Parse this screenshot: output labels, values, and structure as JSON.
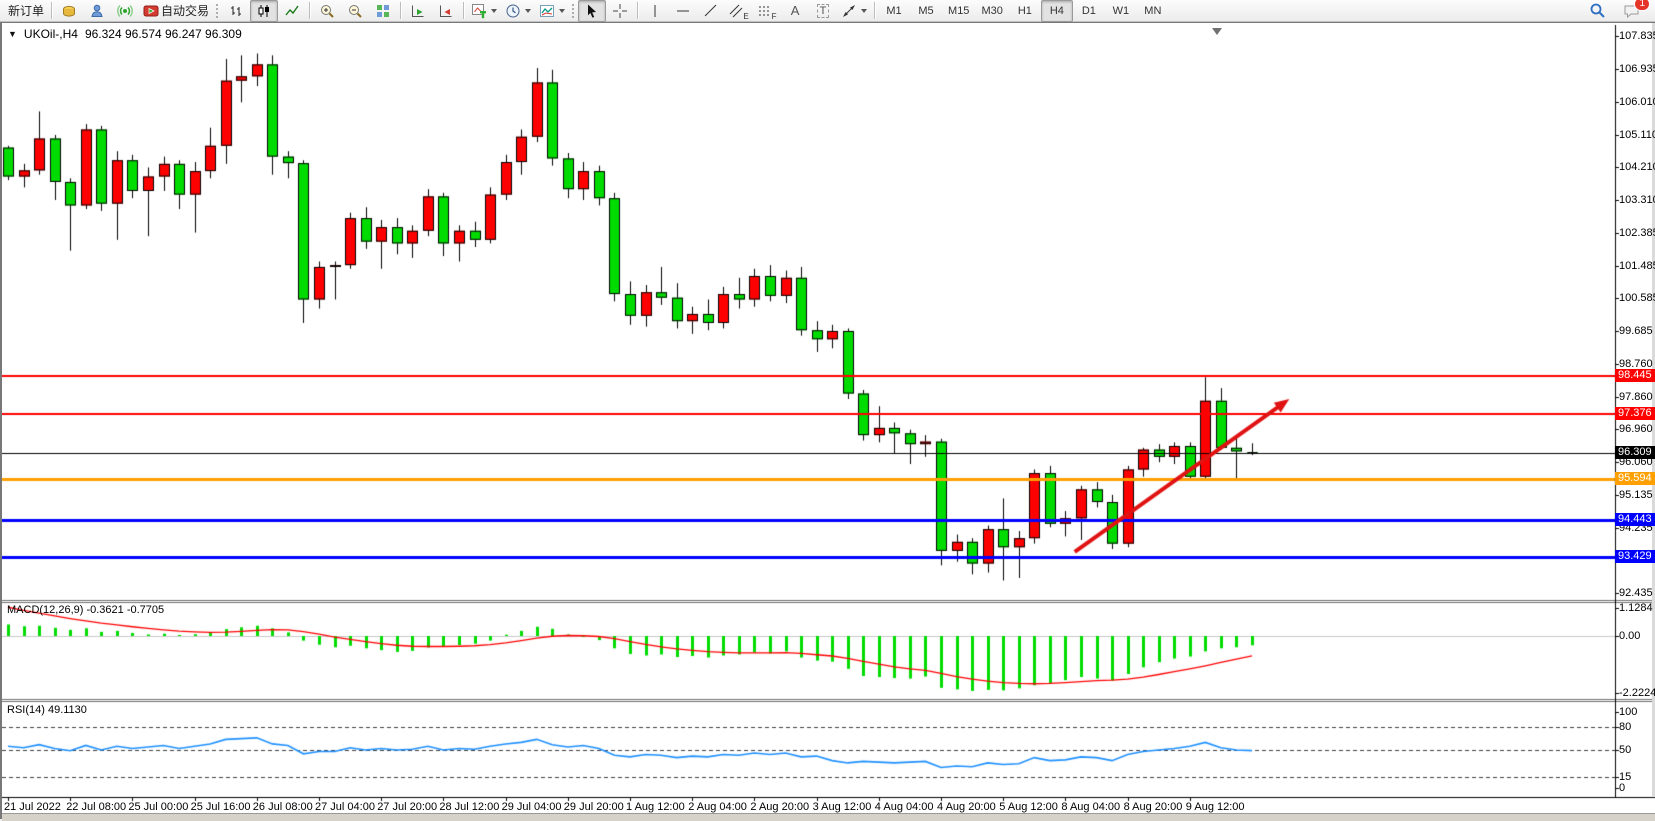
{
  "toolbar": {
    "new_order": "新订单",
    "auto_trading": "自动交易",
    "tool_letters": {
      "channel": "E",
      "fibonacci": "F",
      "text": "A",
      "label": "T"
    },
    "timeframes": [
      "M1",
      "M5",
      "M15",
      "M30",
      "H1",
      "H4",
      "D1",
      "W1",
      "MN"
    ],
    "active_timeframe": "H4",
    "notification_badge": "1",
    "icon_names": [
      "coins-icon",
      "contacts-icon",
      "signal-icon",
      "autotrade-icon",
      "bar-chart-icon",
      "candle-chart-icon",
      "line-chart-icon",
      "zoom-in-icon",
      "zoom-out-icon",
      "tile-windows-icon",
      "profile-next-icon",
      "profile-prev-icon",
      "new-chart-icon",
      "periods-clock-icon",
      "indicators-icon",
      "cursor-icon",
      "crosshair-icon",
      "vline-icon",
      "hline-icon",
      "trendline-icon",
      "channel-icon",
      "fibonacci-icon",
      "text-icon",
      "label-icon",
      "arrows-icon",
      "search-icon",
      "chat-icon"
    ]
  },
  "chart_window": {
    "caption_symbol": "UKOil-,H4",
    "caption_ohlc": "96.324 96.574 96.247 96.309",
    "macd_label": "MACD(12,26,9) -0.3621 -0.7705",
    "rsi_label": "RSI(14) 49.1130"
  },
  "chart_data": {
    "type": "candlestick",
    "symbol": "UKOil-",
    "period": "H4",
    "grid": false,
    "up_color": "#ff0000",
    "down_color": "#00dc00",
    "candle_border": "#000000",
    "price_axis_ticks": [
      "107.835",
      "106.935",
      "106.010",
      "105.110",
      "104.210",
      "103.310",
      "102.385",
      "101.485",
      "100.585",
      "99.685",
      "98.760",
      "97.860",
      "96.960",
      "96.060",
      "95.135",
      "94.235",
      "93.335",
      "92.435"
    ],
    "last_price": "96.309",
    "time_axis_labels": [
      "21 Jul 2022",
      "22 Jul 08:00",
      "25 Jul 00:00",
      "25 Jul 16:00",
      "26 Jul 08:00",
      "27 Jul 04:00",
      "27 Jul 20:00",
      "28 Jul 12:00",
      "29 Jul 04:00",
      "29 Jul 20:00",
      "1 Aug 12:00",
      "2 Aug 04:00",
      "2 Aug 20:00",
      "3 Aug 12:00",
      "4 Aug 04:00",
      "4 Aug 20:00",
      "5 Aug 12:00",
      "8 Aug 04:00",
      "8 Aug 20:00",
      "9 Aug 12:00"
    ],
    "bars_per_label": 4,
    "candles_ohlc": [
      [
        104.75,
        104.8,
        103.85,
        103.95
      ],
      [
        103.95,
        104.3,
        103.65,
        104.12
      ],
      [
        104.12,
        105.75,
        104.0,
        105.0
      ],
      [
        105.0,
        105.1,
        103.3,
        103.8
      ],
      [
        103.8,
        103.9,
        101.9,
        103.15
      ],
      [
        103.15,
        105.4,
        103.05,
        105.25
      ],
      [
        105.25,
        105.35,
        103.0,
        103.2
      ],
      [
        103.2,
        104.65,
        102.2,
        104.4
      ],
      [
        104.4,
        104.55,
        103.35,
        103.55
      ],
      [
        103.55,
        104.2,
        102.3,
        103.95
      ],
      [
        103.95,
        104.5,
        103.55,
        104.3
      ],
      [
        104.3,
        104.4,
        103.05,
        103.45
      ],
      [
        103.45,
        104.35,
        102.4,
        104.1
      ],
      [
        104.1,
        105.3,
        103.9,
        104.8
      ],
      [
        104.8,
        107.2,
        104.3,
        106.6
      ],
      [
        106.6,
        107.3,
        106.0,
        106.72
      ],
      [
        106.72,
        107.35,
        106.45,
        107.05
      ],
      [
        107.05,
        107.3,
        104.0,
        104.5
      ],
      [
        104.5,
        104.65,
        103.9,
        104.32
      ],
      [
        104.32,
        104.4,
        99.9,
        100.55
      ],
      [
        100.55,
        101.6,
        100.3,
        101.45
      ],
      [
        101.45,
        101.6,
        100.55,
        101.5
      ],
      [
        101.5,
        102.95,
        101.4,
        102.8
      ],
      [
        102.8,
        103.1,
        101.95,
        102.15
      ],
      [
        102.15,
        102.75,
        101.4,
        102.55
      ],
      [
        102.55,
        102.8,
        101.8,
        102.1
      ],
      [
        102.1,
        102.6,
        101.7,
        102.45
      ],
      [
        102.45,
        103.6,
        102.3,
        103.4
      ],
      [
        103.4,
        103.5,
        101.75,
        102.1
      ],
      [
        102.1,
        102.6,
        101.6,
        102.45
      ],
      [
        102.45,
        102.7,
        102.0,
        102.2
      ],
      [
        102.2,
        103.65,
        102.1,
        103.45
      ],
      [
        103.45,
        104.55,
        103.3,
        104.35
      ],
      [
        104.35,
        105.25,
        104.0,
        105.05
      ],
      [
        105.05,
        106.95,
        104.9,
        106.55
      ],
      [
        106.55,
        106.9,
        104.25,
        104.45
      ],
      [
        104.45,
        104.6,
        103.35,
        103.6
      ],
      [
        103.6,
        104.35,
        103.3,
        104.1
      ],
      [
        104.1,
        104.25,
        103.15,
        103.35
      ],
      [
        103.35,
        103.5,
        100.5,
        100.7
      ],
      [
        100.7,
        101.05,
        99.85,
        100.1
      ],
      [
        100.1,
        100.95,
        99.8,
        100.75
      ],
      [
        100.75,
        101.45,
        100.4,
        100.6
      ],
      [
        100.6,
        101.0,
        99.75,
        99.95
      ],
      [
        99.95,
        100.35,
        99.6,
        100.15
      ],
      [
        100.15,
        100.55,
        99.7,
        99.9
      ],
      [
        99.9,
        100.9,
        99.75,
        100.7
      ],
      [
        100.7,
        101.15,
        100.3,
        100.55
      ],
      [
        100.55,
        101.4,
        100.35,
        101.2
      ],
      [
        101.2,
        101.5,
        100.5,
        100.65
      ],
      [
        100.65,
        101.35,
        100.45,
        101.15
      ],
      [
        101.15,
        101.45,
        99.55,
        99.7
      ],
      [
        99.7,
        99.95,
        99.1,
        99.45
      ],
      [
        99.45,
        99.85,
        99.2,
        99.68
      ],
      [
        99.68,
        99.75,
        97.8,
        97.95
      ],
      [
        97.95,
        98.05,
        96.65,
        96.8
      ],
      [
        96.8,
        97.6,
        96.6,
        97.0
      ],
      [
        97.0,
        97.15,
        96.3,
        96.85
      ],
      [
        96.85,
        96.95,
        96.0,
        96.55
      ],
      [
        96.55,
        96.8,
        96.2,
        96.62
      ],
      [
        96.62,
        96.7,
        93.2,
        93.6
      ],
      [
        93.6,
        94.05,
        93.3,
        93.85
      ],
      [
        93.85,
        93.95,
        92.95,
        93.25
      ],
      [
        93.25,
        94.3,
        93.0,
        94.2
      ],
      [
        94.2,
        95.05,
        92.78,
        93.7
      ],
      [
        93.7,
        94.15,
        92.85,
        93.95
      ],
      [
        93.95,
        95.85,
        93.8,
        95.75
      ],
      [
        95.75,
        95.95,
        94.25,
        94.35
      ],
      [
        94.35,
        94.7,
        94.0,
        94.5
      ],
      [
        94.5,
        95.4,
        93.9,
        95.3
      ],
      [
        95.3,
        95.5,
        94.8,
        94.95
      ],
      [
        94.95,
        95.15,
        93.65,
        93.8
      ],
      [
        93.8,
        95.95,
        93.7,
        95.85
      ],
      [
        95.85,
        96.45,
        95.65,
        96.4
      ],
      [
        96.4,
        96.55,
        96.05,
        96.2
      ],
      [
        96.2,
        96.6,
        96.0,
        96.5
      ],
      [
        96.5,
        96.6,
        95.55,
        95.65
      ],
      [
        95.65,
        98.4,
        95.6,
        97.75
      ],
      [
        97.75,
        98.1,
        96.4,
        96.45
      ],
      [
        96.45,
        96.75,
        95.55,
        96.35
      ],
      [
        96.324,
        96.574,
        96.247,
        96.309
      ]
    ],
    "levels": [
      {
        "label": "98.445",
        "price": 98.445,
        "color": "#ff0000",
        "width": 2
      },
      {
        "label": "97.376",
        "price": 97.376,
        "color": "#ff0000",
        "width": 2
      },
      {
        "label": "96.309",
        "price": 96.309,
        "color": "#000000",
        "width": 1
      },
      {
        "label": "95.594",
        "price": 95.594,
        "color": "#ff9f00",
        "width": 3
      },
      {
        "label": "94.443",
        "price": 94.443,
        "color": "#0000ff",
        "width": 3
      },
      {
        "label": "93.429",
        "price": 93.429,
        "color": "#0000ff",
        "width": 3
      }
    ],
    "macd": {
      "params": "12,26,9",
      "value": -0.3621,
      "signal_value": -0.7705,
      "axis_ticks": [
        "1.1284",
        "0.00",
        "-2.2224"
      ],
      "hist_color": "#00dc00",
      "signal_color": "#ff0000",
      "histogram": [
        0.45,
        0.38,
        0.4,
        0.32,
        0.24,
        0.3,
        0.16,
        0.2,
        0.12,
        0.06,
        0.09,
        0.04,
        0.07,
        0.13,
        0.27,
        0.34,
        0.4,
        0.3,
        0.14,
        -0.18,
        -0.34,
        -0.44,
        -0.38,
        -0.48,
        -0.55,
        -0.62,
        -0.58,
        -0.45,
        -0.42,
        -0.35,
        -0.3,
        -0.18,
        0.05,
        0.2,
        0.36,
        0.28,
        0.06,
        -0.04,
        -0.16,
        -0.48,
        -0.7,
        -0.76,
        -0.72,
        -0.82,
        -0.78,
        -0.84,
        -0.76,
        -0.72,
        -0.64,
        -0.68,
        -0.6,
        -0.84,
        -0.96,
        -1.0,
        -1.28,
        -1.56,
        -1.6,
        -1.64,
        -1.66,
        -1.58,
        -2.02,
        -2.08,
        -2.14,
        -2.1,
        -2.12,
        -2.04,
        -1.92,
        -1.84,
        -1.72,
        -1.6,
        -1.66,
        -1.74,
        -1.48,
        -1.22,
        -1.02,
        -0.88,
        -0.8,
        -0.6,
        -0.48,
        -0.44,
        -0.3621
      ],
      "signal": [
        1.12,
        1.0,
        0.89,
        0.78,
        0.68,
        0.59,
        0.5,
        0.43,
        0.36,
        0.3,
        0.24,
        0.19,
        0.16,
        0.14,
        0.15,
        0.18,
        0.22,
        0.25,
        0.24,
        0.17,
        0.07,
        -0.04,
        -0.13,
        -0.22,
        -0.3,
        -0.36,
        -0.4,
        -0.41,
        -0.41,
        -0.4,
        -0.38,
        -0.34,
        -0.27,
        -0.18,
        -0.08,
        -0.01,
        0.02,
        0.01,
        -0.02,
        -0.1,
        -0.22,
        -0.33,
        -0.42,
        -0.5,
        -0.56,
        -0.61,
        -0.64,
        -0.66,
        -0.66,
        -0.66,
        -0.65,
        -0.68,
        -0.73,
        -0.78,
        -0.87,
        -0.99,
        -1.1,
        -1.2,
        -1.28,
        -1.34,
        -1.46,
        -1.58,
        -1.68,
        -1.76,
        -1.82,
        -1.85,
        -1.86,
        -1.85,
        -1.82,
        -1.78,
        -1.74,
        -1.72,
        -1.68,
        -1.6,
        -1.5,
        -1.39,
        -1.28,
        -1.16,
        -1.03,
        -0.9,
        -0.7705
      ]
    },
    "rsi": {
      "period": 14,
      "value": 49.113,
      "axis_ticks": [
        "100",
        "80",
        "50",
        "15",
        "0"
      ],
      "levels": [
        80,
        50,
        15
      ],
      "line_color": "#1e90ff",
      "values": [
        55,
        53,
        57,
        52,
        49,
        56,
        50,
        55,
        52,
        54,
        56,
        52,
        55,
        58,
        64,
        65,
        66,
        58,
        56,
        45,
        48,
        48,
        53,
        50,
        52,
        50,
        51,
        55,
        50,
        52,
        51,
        55,
        58,
        60,
        64,
        57,
        54,
        56,
        52,
        43,
        41,
        44,
        43,
        40,
        42,
        41,
        44,
        43,
        46,
        44,
        46,
        41,
        42,
        36,
        33,
        35,
        34,
        33,
        34,
        35,
        27,
        29,
        28,
        33,
        31,
        32,
        40,
        36,
        37,
        41,
        40,
        36,
        44,
        48,
        50,
        52,
        55,
        60,
        53,
        50,
        49.113
      ]
    },
    "annotations": {
      "trend_arrow": {
        "color": "#e01212",
        "x1_bar": 68.6,
        "y1_price": 93.57,
        "x2_bar": 82.4,
        "y2_price": 97.8,
        "width": 4
      }
    }
  }
}
